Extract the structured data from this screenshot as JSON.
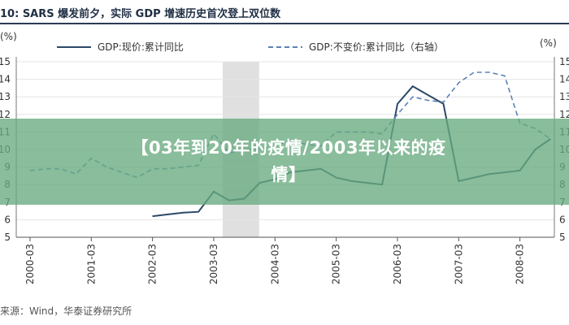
{
  "figure": {
    "title": "10: SARS 爆发前夕，实际 GDP 增速历史首次登上双位数",
    "source": "来源：Wind，华泰证券研究所"
  },
  "overlay": {
    "text": "【03年到20年的疫情/2003年以来的疫情】"
  },
  "colors": {
    "actual_line": "#2c4968",
    "constant_line": "#5b82b5",
    "highlight_band": "#e0e0e0",
    "banner": "#68ab7f"
  },
  "chart_data": {
    "type": "line",
    "x_unit": "quarter",
    "x_ticks": [
      "2000-03",
      "2001-03",
      "2002-03",
      "2003-03",
      "2004-03",
      "2005-03",
      "2006-03",
      "2007-03",
      "2008-03"
    ],
    "xlim": [
      "2000-03",
      "2008-09"
    ],
    "highlight_range": [
      "2003-03",
      "2003-06"
    ],
    "y_left": {
      "label": "(%)",
      "ticks": [
        4,
        5,
        6,
        7,
        8,
        9,
        10,
        11,
        12,
        13,
        14,
        15
      ],
      "visible_tick_labels": [
        "5",
        "6",
        "7",
        "8",
        "9",
        "10",
        "11",
        "12",
        "13",
        "14",
        "15"
      ],
      "ylim": [
        5,
        15
      ]
    },
    "y_right": {
      "label": "(%)",
      "ticks": [
        5,
        6,
        7,
        8,
        9,
        10,
        11,
        12,
        13,
        14,
        15
      ],
      "ylim": [
        5,
        15
      ]
    },
    "legend_position": "top",
    "series": [
      {
        "name": "GDP:现价:累计同比",
        "axis": "left",
        "style": "solid",
        "points": [
          [
            "2002-03",
            6.2
          ],
          [
            "2002-06",
            6.3
          ],
          [
            "2002-09",
            6.4
          ],
          [
            "2002-12",
            6.45
          ],
          [
            "2003-03",
            7.6
          ],
          [
            "2003-06",
            7.1
          ],
          [
            "2003-09",
            7.2
          ],
          [
            "2003-12",
            8.1
          ],
          [
            "2004-03",
            8.3
          ],
          [
            "2004-06",
            8.7
          ],
          [
            "2004-09",
            8.8
          ],
          [
            "2004-12",
            8.9
          ],
          [
            "2005-03",
            8.4
          ],
          [
            "2005-06",
            8.2
          ],
          [
            "2005-09",
            8.1
          ],
          [
            "2005-12",
            8.0
          ],
          [
            "2006-03",
            12.6
          ],
          [
            "2006-06",
            13.6
          ],
          [
            "2006-09",
            13.1
          ],
          [
            "2006-12",
            12.6
          ],
          [
            "2007-03",
            8.2
          ],
          [
            "2007-06",
            8.4
          ],
          [
            "2007-09",
            8.6
          ],
          [
            "2007-12",
            8.7
          ],
          [
            "2008-03",
            8.8
          ],
          [
            "2008-06",
            10.0
          ],
          [
            "2008-09",
            10.6
          ]
        ]
      },
      {
        "name": "GDP:不变价:累计同比（右轴）",
        "axis": "right",
        "style": "dashed",
        "points": [
          [
            "2000-03",
            8.8
          ],
          [
            "2000-06",
            8.9
          ],
          [
            "2000-09",
            8.9
          ],
          [
            "2000-12",
            8.6
          ],
          [
            "2001-03",
            9.5
          ],
          [
            "2001-06",
            9.0
          ],
          [
            "2001-09",
            8.7
          ],
          [
            "2001-12",
            8.4
          ],
          [
            "2002-03",
            8.9
          ],
          [
            "2002-06",
            8.9
          ],
          [
            "2002-09",
            9.0
          ],
          [
            "2002-12",
            9.1
          ],
          [
            "2003-03",
            10.9
          ],
          [
            "2003-06",
            9.8
          ],
          [
            "2003-09",
            10.0
          ],
          [
            "2003-12",
            10.0
          ],
          [
            "2004-03",
            10.2
          ],
          [
            "2004-06",
            10.5
          ],
          [
            "2004-09",
            10.3
          ],
          [
            "2004-12",
            10.2
          ],
          [
            "2005-03",
            11.0
          ],
          [
            "2005-06",
            11.0
          ],
          [
            "2005-09",
            11.0
          ],
          [
            "2005-12",
            10.9
          ],
          [
            "2006-03",
            12.0
          ],
          [
            "2006-06",
            13.0
          ],
          [
            "2006-09",
            12.8
          ],
          [
            "2006-12",
            12.7
          ],
          [
            "2007-03",
            13.8
          ],
          [
            "2007-06",
            14.4
          ],
          [
            "2007-09",
            14.4
          ],
          [
            "2007-12",
            14.2
          ],
          [
            "2008-03",
            11.5
          ],
          [
            "2008-06",
            11.2
          ],
          [
            "2008-09",
            10.6
          ]
        ]
      }
    ]
  }
}
